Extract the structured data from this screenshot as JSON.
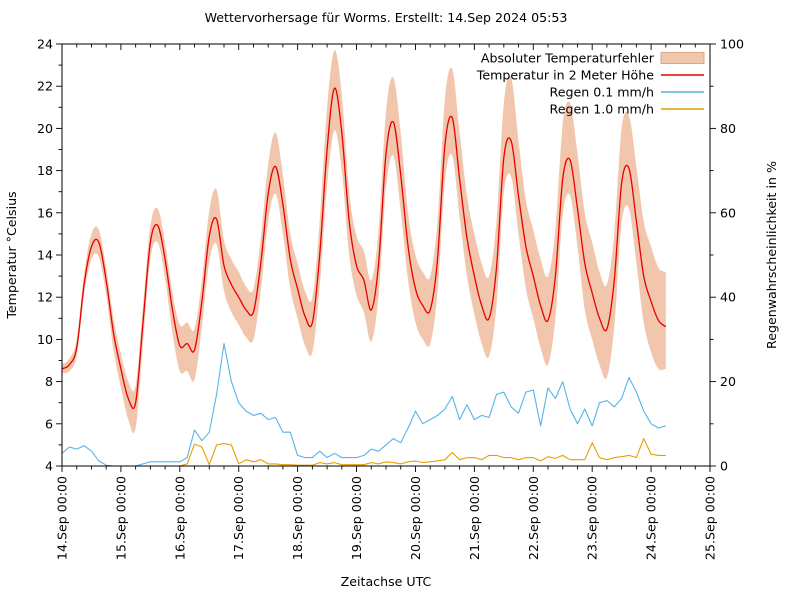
{
  "title": "Wettervorhersage für Worms. Erstellt: 14.Sep 2024 05:53",
  "chart_data": {
    "type": "line",
    "title": "Wettervorhersage für Worms. Erstellt: 14.Sep 2024 05:53",
    "xlabel": "Zeitachse UTC",
    "ylabel_left": "Temperatur °Celsius",
    "ylabel_right": "Regenwahrscheinlichkeit in %",
    "grid": false,
    "legend_position": "top-right",
    "x_axis": {
      "start_label": "14.Sep 00:00",
      "end_label": "25.Sep 00:00",
      "tick_labels": [
        "14.Sep 00:00",
        "15.Sep 00:00",
        "16.Sep 00:00",
        "17.Sep 00:00",
        "18.Sep 00:00",
        "19.Sep 00:00",
        "20.Sep 00:00",
        "21.Sep 00:00",
        "22.Sep 00:00",
        "23.Sep 00:00",
        "24.Sep 00:00",
        "25.Sep 00:00"
      ],
      "total_hours": 264,
      "minor_tick_hours": 6
    },
    "y_left": {
      "min": 4,
      "max": 24,
      "major_ticks": [
        4,
        6,
        8,
        10,
        12,
        14,
        16,
        18,
        20,
        22,
        24
      ],
      "minor_step": 1
    },
    "y_right": {
      "min": 0,
      "max": 100,
      "major_ticks": [
        0,
        20,
        40,
        60,
        80,
        100
      ],
      "minor_step": 10
    },
    "colors": {
      "error_band_fill": "#f2c6ad",
      "error_band_edge": "#dba788",
      "temperature": "#e60000",
      "rain_01": "#56b4e9",
      "rain_10": "#e69f00",
      "axes": "#000000",
      "background": "#ffffff"
    },
    "legend": [
      {
        "label": "Absoluter Temperaturfehler",
        "marker": "band"
      },
      {
        "label": "Temperatur in 2 Meter Höhe",
        "marker": "line-red"
      },
      {
        "label": "Regen 0.1 mm/h",
        "marker": "line-blue"
      },
      {
        "label": "Regen 1.0 mm/h",
        "marker": "line-orange"
      }
    ],
    "sample_interval_hours": 3,
    "series": [
      {
        "name": "Temperatur in 2 Meter Höhe",
        "axis": "left",
        "unit": "°C",
        "values": [
          8.6,
          8.8,
          9.6,
          12.6,
          14.4,
          14.6,
          12.8,
          10.3,
          8.6,
          7.2,
          7.0,
          10.8,
          14.6,
          15.4,
          13.8,
          11.4,
          9.7,
          9.8,
          9.5,
          11.8,
          14.9,
          15.7,
          13.5,
          12.6,
          12.0,
          11.4,
          11.3,
          13.6,
          16.9,
          18.2,
          16.4,
          13.8,
          12.4,
          11.1,
          10.8,
          14.0,
          19.0,
          21.9,
          19.8,
          15.6,
          13.5,
          12.8,
          11.4,
          13.6,
          18.8,
          20.3,
          17.8,
          14.4,
          12.4,
          11.6,
          11.4,
          13.8,
          19.2,
          20.5,
          17.6,
          14.8,
          13.0,
          11.6,
          11.0,
          13.4,
          18.6,
          19.4,
          16.8,
          14.4,
          13.0,
          11.6,
          10.9,
          13.0,
          17.6,
          18.5,
          16.2,
          13.6,
          12.2,
          11.0,
          10.5,
          12.8,
          17.4,
          18.1,
          15.6,
          13.0,
          11.8,
          10.9,
          10.6
        ]
      },
      {
        "name": "Absoluter Temperaturfehler obere Grenze",
        "axis": "left",
        "unit": "°C",
        "values": [
          8.8,
          9.1,
          10.0,
          13.1,
          15.0,
          15.2,
          13.4,
          11.0,
          9.3,
          8.0,
          7.8,
          11.6,
          15.4,
          16.2,
          14.6,
          12.2,
          10.7,
          10.8,
          10.5,
          12.8,
          16.1,
          17.1,
          14.7,
          13.8,
          13.2,
          12.5,
          12.4,
          14.8,
          18.3,
          19.8,
          17.8,
          15.0,
          13.6,
          12.3,
          12.0,
          15.6,
          21.0,
          23.7,
          21.6,
          17.0,
          14.9,
          14.2,
          12.8,
          15.2,
          20.8,
          22.4,
          19.8,
          16.0,
          14.0,
          13.2,
          13.0,
          15.6,
          21.4,
          22.8,
          19.8,
          16.8,
          15.0,
          13.6,
          13.0,
          15.6,
          21.2,
          22.4,
          19.4,
          16.6,
          15.2,
          13.8,
          13.0,
          15.2,
          20.2,
          21.2,
          18.8,
          16.0,
          14.6,
          13.2,
          12.6,
          15.0,
          20.0,
          20.6,
          18.2,
          15.6,
          14.4,
          13.4,
          13.2
        ]
      },
      {
        "name": "Absoluter Temperaturfehler untere Grenze",
        "axis": "left",
        "unit": "°C",
        "values": [
          8.4,
          8.5,
          9.2,
          12.1,
          13.8,
          13.9,
          12.1,
          9.5,
          7.7,
          6.2,
          5.8,
          9.8,
          13.8,
          14.6,
          12.9,
          10.3,
          8.5,
          8.5,
          8.1,
          10.6,
          13.7,
          14.5,
          12.3,
          11.3,
          10.7,
          10.1,
          10.0,
          12.3,
          15.6,
          16.9,
          15.0,
          12.4,
          11.0,
          9.7,
          9.4,
          12.5,
          17.3,
          19.9,
          18.0,
          14.0,
          12.1,
          11.3,
          9.9,
          12.1,
          17.2,
          18.7,
          16.1,
          12.8,
          10.8,
          10.0,
          9.8,
          12.2,
          17.5,
          18.7,
          15.8,
          13.0,
          11.2,
          9.8,
          9.2,
          11.6,
          16.9,
          17.7,
          15.0,
          12.4,
          11.0,
          9.6,
          8.8,
          11.0,
          15.9,
          16.8,
          14.4,
          11.4,
          10.0,
          8.8,
          8.2,
          10.6,
          15.5,
          16.2,
          13.6,
          10.8,
          9.4,
          8.6,
          8.6
        ]
      },
      {
        "name": "Regen 0.1 mm/h",
        "axis": "right",
        "unit": "%",
        "values": [
          3.0,
          4.5,
          4.0,
          4.8,
          3.5,
          1.2,
          0.2,
          0.0,
          0.0,
          0.0,
          0.0,
          0.5,
          1.0,
          1.0,
          1.0,
          1.0,
          1.0,
          2.0,
          8.5,
          6.0,
          8.0,
          17.0,
          29.0,
          20.0,
          15.0,
          13.0,
          12.0,
          12.5,
          11.0,
          11.5,
          8.0,
          8.0,
          2.5,
          2.0,
          2.0,
          3.5,
          2.0,
          3.0,
          2.0,
          2.0,
          2.0,
          2.5,
          4.0,
          3.5,
          5.0,
          6.5,
          5.5,
          9.0,
          13.0,
          10.0,
          11.0,
          12.0,
          13.5,
          16.5,
          11.0,
          14.5,
          11.0,
          12.0,
          11.5,
          17.0,
          17.5,
          14.0,
          12.5,
          17.5,
          18.0,
          9.5,
          18.5,
          16.0,
          20.0,
          13.5,
          10.0,
          13.5,
          9.5,
          15.0,
          15.5,
          14.0,
          16.0,
          21.0,
          17.5,
          13.0,
          10.0,
          9.0,
          9.5
        ]
      },
      {
        "name": "Regen 1.0 mm/h",
        "axis": "right",
        "unit": "%",
        "values": [
          0,
          0,
          0,
          0,
          0,
          0,
          0,
          0,
          0,
          0,
          0,
          0,
          0,
          0,
          0,
          0,
          0,
          0.5,
          5.2,
          4.5,
          0.3,
          5.0,
          5.3,
          5.0,
          0.5,
          1.5,
          1.0,
          1.5,
          0.5,
          0.5,
          0.3,
          0.3,
          0.2,
          0.2,
          0.2,
          0.8,
          0.5,
          0.8,
          0.3,
          0.3,
          0.3,
          0.3,
          0.8,
          0.5,
          1.0,
          0.8,
          0.5,
          1.0,
          1.2,
          0.8,
          1.0,
          1.2,
          1.5,
          3.2,
          1.5,
          2.0,
          2.0,
          1.5,
          2.5,
          2.5,
          2.0,
          2.0,
          1.5,
          2.0,
          2.0,
          1.2,
          2.2,
          1.8,
          2.5,
          1.5,
          1.5,
          1.5,
          5.5,
          2.0,
          1.5,
          2.0,
          2.2,
          2.5,
          2.0,
          6.5,
          2.8,
          2.5,
          2.5
        ]
      }
    ]
  }
}
